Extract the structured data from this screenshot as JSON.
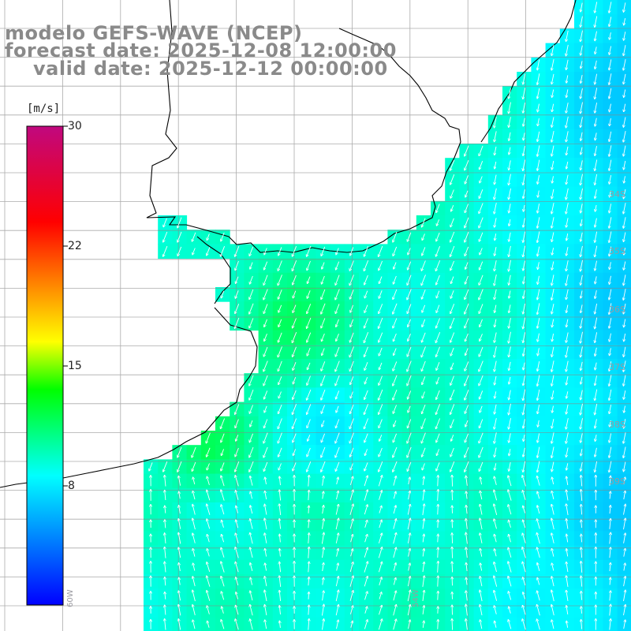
{
  "title": {
    "model": "modelo GEFS-WAVE (NCEP)",
    "forecast": "forecast date: 2025-12-08 12:00:00",
    "valid": "valid date: 2025-12-12 00:00:00"
  },
  "colorbar": {
    "unit": "[m/s]",
    "min": 0,
    "max": 30,
    "ticks": [
      "30",
      "22",
      "15",
      "8"
    ],
    "tick_values": [
      30,
      22,
      15,
      8
    ],
    "colors": [
      "#0000ff",
      "#00ffff",
      "#00ff00",
      "#ffff00",
      "#ff0000",
      "#c0087f"
    ]
  },
  "lat_labels": [
    "34S",
    "35S",
    "36S",
    "37S",
    "38S",
    "39S"
  ],
  "lon_labels": [
    "60W",
    "54W"
  ],
  "colors": {
    "land": "#ffffff",
    "coastline": "#000000",
    "grid": "#888888",
    "arrow": "#ffffff"
  }
}
